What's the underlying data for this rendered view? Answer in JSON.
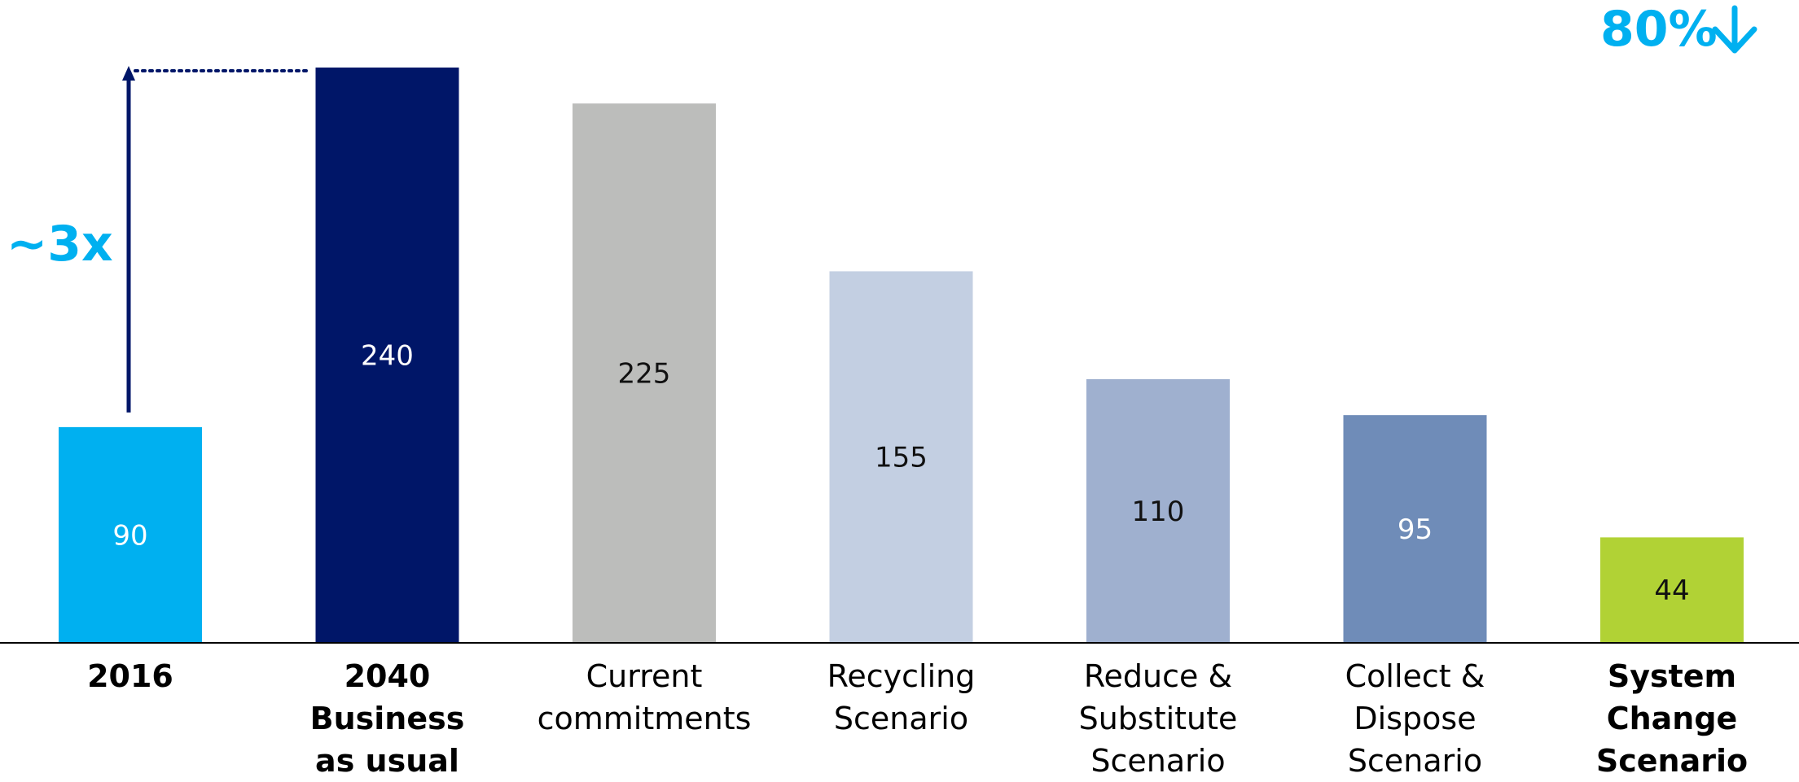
{
  "chart_data": {
    "type": "bar",
    "title": "",
    "xlabel": "",
    "ylabel": "",
    "ylim": [
      0,
      240
    ],
    "categories": [
      {
        "lines": [
          "2016"
        ],
        "bold": true
      },
      {
        "lines": [
          "2040",
          "Business",
          "as usual"
        ],
        "bold": true
      },
      {
        "lines": [
          "Current",
          "commitments"
        ],
        "bold": false
      },
      {
        "lines": [
          "Recycling",
          "Scenario"
        ],
        "bold": false
      },
      {
        "lines": [
          "Reduce &",
          "Substitute",
          "Scenario"
        ],
        "bold": false
      },
      {
        "lines": [
          "Collect &",
          "Dispose",
          "Scenario"
        ],
        "bold": false
      },
      {
        "lines": [
          "System",
          "Change",
          "Scenario"
        ],
        "bold": true
      }
    ],
    "values": [
      90,
      240,
      225,
      155,
      110,
      95,
      44
    ],
    "value_labels": [
      "90",
      "240",
      "225",
      "155",
      "110",
      "95",
      "44"
    ],
    "bar_colors": [
      "#00b0f0",
      "#001668",
      "#bcbdbb",
      "#c3cfe2",
      "#9fb0cf",
      "#6f8cb8",
      "#b1d235"
    ],
    "value_label_colors": [
      "#ffffff",
      "#ffffff",
      "#111111",
      "#111111",
      "#111111",
      "#ffffff",
      "#111111"
    ],
    "grid": false,
    "legend": "none",
    "annotations": {
      "growth": {
        "text": "~3x",
        "color": "#00b0f0",
        "from_bar": 0,
        "to_bar": 1
      },
      "reduction": {
        "text": "80%",
        "arrow": "↓",
        "color": "#00b0f0"
      }
    },
    "axis_color": "#000000",
    "arrow_color": "#001668"
  }
}
